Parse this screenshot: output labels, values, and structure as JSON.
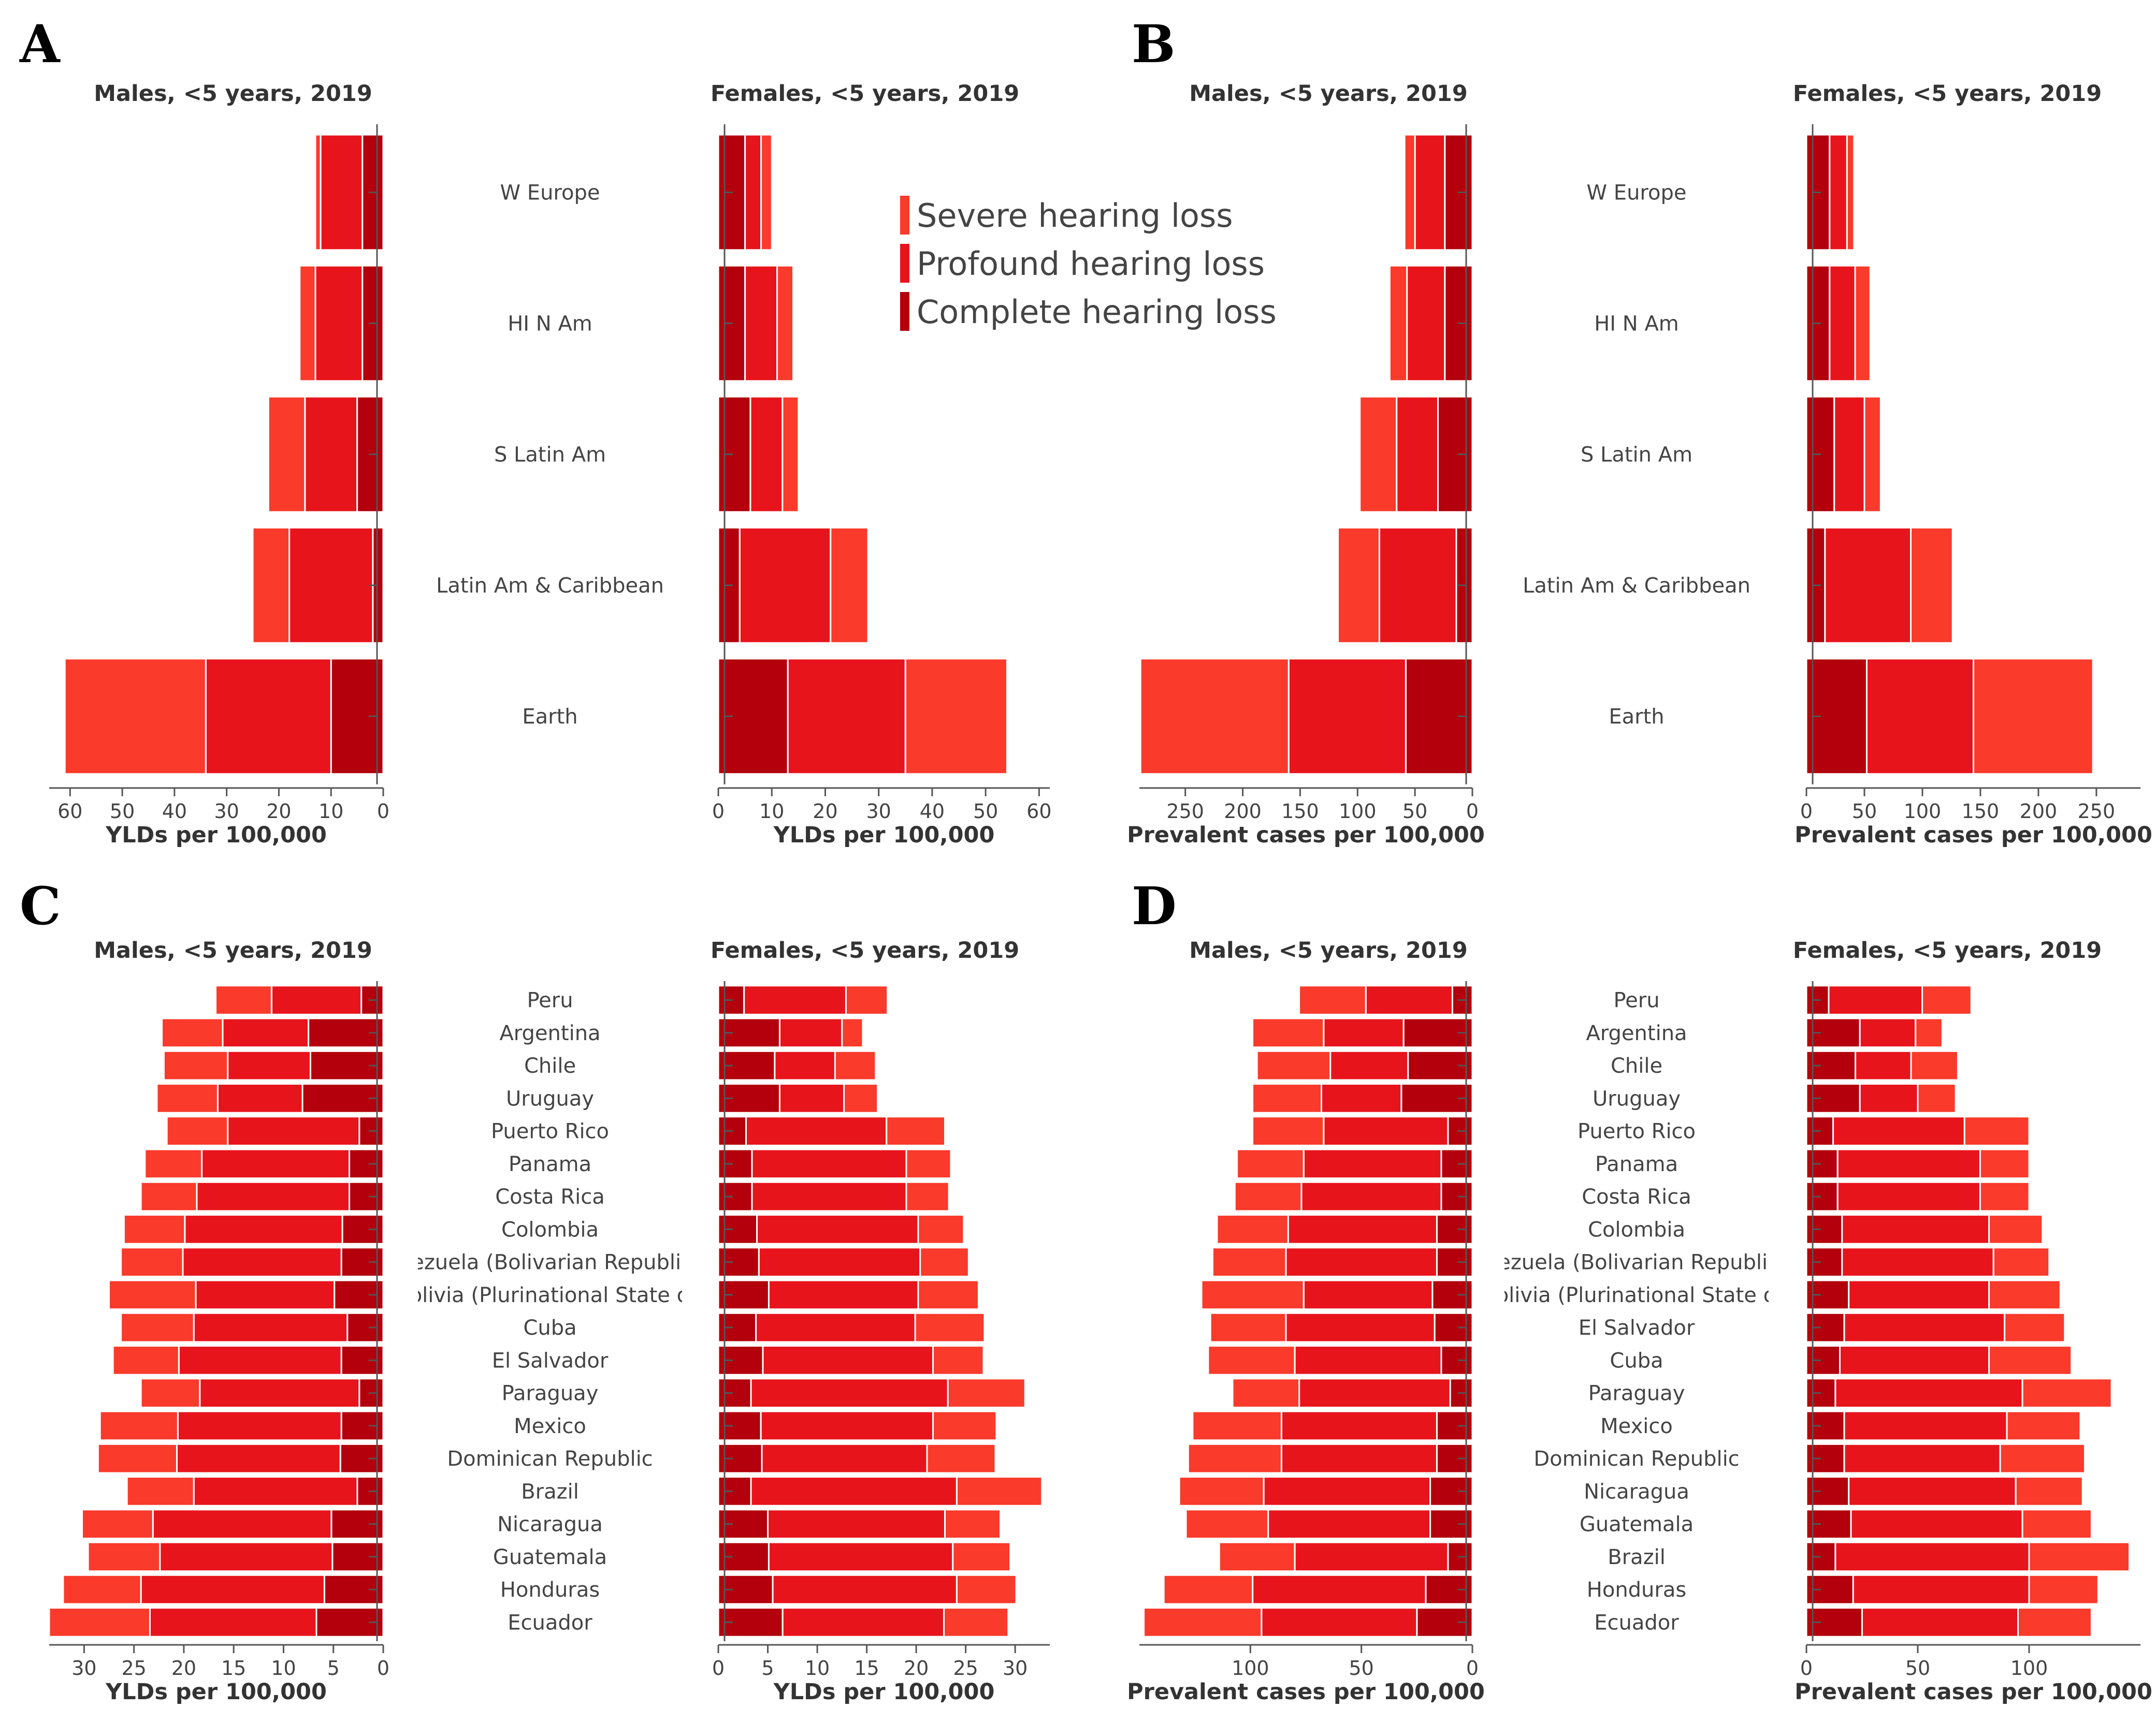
{
  "colors": {
    "severe": "#fa3a2b",
    "profound": "#e8141c",
    "complete": "#b3000c",
    "separator": "#ffffff"
  },
  "panel_letters": [
    "A",
    "B",
    "C",
    "D"
  ],
  "legend": {
    "items": [
      {
        "label": "Severe hearing loss",
        "color": "#fa3a2b"
      },
      {
        "label": "Profound hearing loss",
        "color": "#e8141c"
      },
      {
        "label": "Complete hearing loss",
        "color": "#b3000c"
      }
    ]
  },
  "chart_data": [
    {
      "id": "A-males",
      "panel": "A",
      "type": "bar",
      "orientation": "horizontal",
      "stacked": true,
      "direction": "left",
      "title": "Males, <5 years, 2019",
      "xlabel": "YLDs per 100,000",
      "xlim": [
        0,
        64
      ],
      "xticks": [
        0,
        10,
        20,
        30,
        40,
        50,
        60
      ],
      "categories": [
        "W Europe",
        "HI N Am",
        "S Latin Am",
        "Latin Am & Caribbean",
        "Earth"
      ],
      "series": [
        {
          "name": "Complete hearing loss",
          "values": [
            4,
            4,
            5,
            2,
            10
          ]
        },
        {
          "name": "Profound hearing loss",
          "values": [
            8,
            9,
            10,
            16,
            24
          ]
        },
        {
          "name": "Severe hearing loss",
          "values": [
            1,
            3,
            7,
            7,
            27
          ]
        }
      ]
    },
    {
      "id": "A-females",
      "panel": "A",
      "type": "bar",
      "orientation": "horizontal",
      "stacked": true,
      "direction": "right",
      "title": "Females, <5 years, 2019",
      "xlabel": "YLDs per 100,000",
      "xlim": [
        0,
        62
      ],
      "xticks": [
        0,
        10,
        20,
        30,
        40,
        50,
        60
      ],
      "categories": [
        "W Europe",
        "HI N Am",
        "S Latin Am",
        "Latin Am & Caribbean",
        "Earth"
      ],
      "series": [
        {
          "name": "Complete hearing loss",
          "values": [
            5,
            5,
            6,
            4,
            13
          ]
        },
        {
          "name": "Profound hearing loss",
          "values": [
            3,
            6,
            6,
            17,
            22
          ]
        },
        {
          "name": "Severe hearing loss",
          "values": [
            2,
            3,
            3,
            7,
            19
          ]
        }
      ]
    },
    {
      "id": "B-males",
      "panel": "B",
      "type": "bar",
      "orientation": "horizontal",
      "stacked": true,
      "direction": "left",
      "title": "Males, <5 years, 2019",
      "xlabel": "Prevalent cases per 100,000",
      "xlim": [
        0,
        290
      ],
      "xticks": [
        0,
        50,
        100,
        150,
        200,
        250
      ],
      "categories": [
        "W Europe",
        "HI N Am",
        "S Latin Am",
        "Latin Am & Caribbean",
        "Earth"
      ],
      "series": [
        {
          "name": "Complete hearing loss",
          "values": [
            24,
            24,
            30,
            14,
            58
          ]
        },
        {
          "name": "Profound hearing loss",
          "values": [
            26,
            33,
            36,
            67,
            102
          ]
        },
        {
          "name": "Severe hearing loss",
          "values": [
            9,
            15,
            32,
            36,
            129
          ]
        }
      ]
    },
    {
      "id": "B-females",
      "panel": "B",
      "type": "bar",
      "orientation": "horizontal",
      "stacked": true,
      "direction": "right",
      "title": "Females, <5 years, 2019",
      "xlabel": "Prevalent cases per 100,000",
      "xlim": [
        0,
        288
      ],
      "xticks": [
        0,
        50,
        100,
        150,
        200,
        250
      ],
      "categories": [
        "W Europe",
        "HI N Am",
        "S Latin Am",
        "Latin Am & Caribbean",
        "Earth"
      ],
      "series": [
        {
          "name": "Complete hearing loss",
          "values": [
            20,
            20,
            24,
            16,
            52
          ]
        },
        {
          "name": "Profound hearing loss",
          "values": [
            15,
            22,
            26,
            74,
            92
          ]
        },
        {
          "name": "Severe hearing loss",
          "values": [
            6,
            13,
            14,
            36,
            103
          ]
        }
      ]
    },
    {
      "id": "C-males",
      "panel": "C",
      "type": "bar",
      "orientation": "horizontal",
      "stacked": true,
      "direction": "left",
      "title": "Males, <5 years, 2019",
      "xlabel": "YLDs per 100,000",
      "xlim": [
        0,
        33.5
      ],
      "xticks": [
        0,
        5,
        10,
        15,
        20,
        25,
        30
      ],
      "categories": [
        "Peru",
        "Argentina",
        "Chile",
        "Uruguay",
        "Puerto Rico",
        "Panama",
        "Costa Rica",
        "Colombia",
        "Venezuela (Bolivarian Republic of)",
        "Bolivia (Plurinational State of)",
        "Cuba",
        "El Salvador",
        "Paraguay",
        "Mexico",
        "Dominican Republic",
        "Brazil",
        "Nicaragua",
        "Guatemala",
        "Honduras",
        "Ecuador"
      ],
      "series": [
        {
          "name": "Complete hearing loss",
          "values": [
            2.2,
            7.5,
            7.3,
            8.1,
            2.4,
            3.4,
            3.4,
            4.1,
            4.2,
            4.9,
            3.6,
            4.2,
            2.4,
            4.2,
            4.3,
            2.6,
            5.2,
            5.1,
            5.9,
            6.7
          ]
        },
        {
          "name": "Profound hearing loss",
          "values": [
            9.0,
            8.6,
            8.3,
            8.5,
            13.2,
            14.8,
            15.3,
            15.8,
            15.9,
            13.9,
            15.4,
            16.3,
            16.0,
            16.4,
            16.4,
            16.4,
            17.9,
            17.3,
            18.4,
            16.7
          ]
        },
        {
          "name": "Severe hearing loss",
          "values": [
            5.6,
            6.1,
            6.4,
            6.1,
            6.1,
            5.7,
            5.6,
            6.1,
            6.2,
            8.7,
            7.3,
            6.6,
            5.9,
            7.8,
            7.9,
            6.7,
            7.1,
            7.2,
            7.8,
            10.1
          ]
        }
      ]
    },
    {
      "id": "C-females",
      "panel": "C",
      "type": "bar",
      "orientation": "horizontal",
      "stacked": true,
      "direction": "right",
      "title": "Females, <5 years, 2019",
      "xlabel": "YLDs per 100,000",
      "xlim": [
        0,
        33.5
      ],
      "xticks": [
        0,
        5,
        10,
        15,
        20,
        25,
        30
      ],
      "categories": [
        "Peru",
        "Argentina",
        "Chile",
        "Uruguay",
        "Puerto Rico",
        "Panama",
        "Costa Rica",
        "Colombia",
        "Venezuela (Bolivarian Republic of)",
        "Bolivia (Plurinational State of)",
        "El Salvador",
        "Cuba",
        "Paraguay",
        "Mexico",
        "Dominican Republic",
        "Brazil",
        "Nicaragua",
        "Guatemala",
        "Honduras",
        "Ecuador"
      ],
      "series": [
        {
          "name": "Complete hearing loss",
          "values": [
            2.6,
            6.2,
            5.7,
            6.2,
            2.8,
            3.4,
            3.4,
            3.9,
            4.1,
            5.1,
            3.8,
            4.5,
            3.3,
            4.3,
            4.4,
            3.3,
            5.0,
            5.1,
            5.5,
            6.5
          ]
        },
        {
          "name": "Profound hearing loss",
          "values": [
            10.3,
            6.3,
            6.1,
            6.5,
            14.2,
            15.6,
            15.6,
            16.3,
            16.3,
            15.1,
            16.1,
            17.2,
            19.9,
            17.4,
            16.7,
            20.8,
            17.9,
            18.6,
            18.6,
            16.3
          ]
        },
        {
          "name": "Severe hearing loss",
          "values": [
            4.2,
            2.1,
            4.1,
            3.4,
            5.9,
            4.5,
            4.3,
            4.6,
            4.9,
            6.1,
            7.0,
            5.1,
            7.8,
            6.4,
            6.9,
            8.6,
            5.6,
            5.8,
            6.0,
            6.5
          ]
        }
      ]
    },
    {
      "id": "D-males",
      "panel": "D",
      "type": "bar",
      "orientation": "horizontal",
      "stacked": true,
      "direction": "left",
      "title": "Males, <5 years, 2019",
      "xlabel": "Prevalent cases per 100,000",
      "xlim": [
        0,
        150
      ],
      "xticks": [
        0,
        50,
        100
      ],
      "categories": [
        "Peru",
        "Argentina",
        "Chile",
        "Uruguay",
        "Puerto Rico",
        "Panama",
        "Costa Rica",
        "Colombia",
        "Venezuela (Bolivarian Republic of)",
        "Bolivia (Plurinational State of)",
        "El Salvador",
        "Cuba",
        "Paraguay",
        "Mexico",
        "Dominican Republic",
        "Nicaragua",
        "Guatemala",
        "Brazil",
        "Honduras",
        "Ecuador"
      ],
      "series": [
        {
          "name": "Complete hearing loss",
          "values": [
            9,
            31,
            29,
            32,
            11,
            14,
            14,
            16,
            16,
            18,
            17,
            14,
            10,
            16,
            16,
            19,
            19,
            11,
            21,
            25
          ]
        },
        {
          "name": "Profound hearing loss",
          "values": [
            39,
            36,
            35,
            36,
            56,
            62,
            63,
            67,
            68,
            58,
            67,
            66,
            68,
            70,
            70,
            75,
            73,
            69,
            78,
            70
          ]
        },
        {
          "name": "Severe hearing loss",
          "values": [
            30,
            32,
            33,
            31,
            32,
            30,
            30,
            32,
            33,
            46,
            34,
            39,
            30,
            40,
            42,
            38,
            37,
            34,
            40,
            53
          ]
        }
      ]
    },
    {
      "id": "D-females",
      "panel": "D",
      "type": "bar",
      "orientation": "horizontal",
      "stacked": true,
      "direction": "right",
      "title": "Females, <5 years, 2019",
      "xlabel": "Prevalent cases per 100,000",
      "xlim": [
        0,
        150
      ],
      "xticks": [
        0,
        50,
        100
      ],
      "categories": [
        "Peru",
        "Argentina",
        "Chile",
        "Uruguay",
        "Puerto Rico",
        "Panama",
        "Costa Rica",
        "Colombia",
        "Venezuela (Bolivarian Republic of)",
        "Bolivia (Plurinational State of)",
        "El Salvador",
        "Cuba",
        "Paraguay",
        "Mexico",
        "Dominican Republic",
        "Nicaragua",
        "Guatemala",
        "Brazil",
        "Honduras",
        "Ecuador"
      ],
      "series": [
        {
          "name": "Complete hearing loss",
          "values": [
            10,
            24,
            22,
            24,
            12,
            14,
            14,
            16,
            16,
            19,
            17,
            15,
            13,
            17,
            17,
            19,
            20,
            13,
            21,
            25
          ]
        },
        {
          "name": "Profound hearing loss",
          "values": [
            42,
            25,
            25,
            26,
            59,
            64,
            64,
            66,
            68,
            63,
            72,
            67,
            84,
            73,
            70,
            75,
            77,
            87,
            79,
            70
          ]
        },
        {
          "name": "Severe hearing loss",
          "values": [
            22,
            12,
            21,
            17,
            29,
            22,
            22,
            24,
            25,
            32,
            27,
            37,
            40,
            33,
            38,
            30,
            31,
            45,
            31,
            33
          ]
        }
      ]
    }
  ]
}
